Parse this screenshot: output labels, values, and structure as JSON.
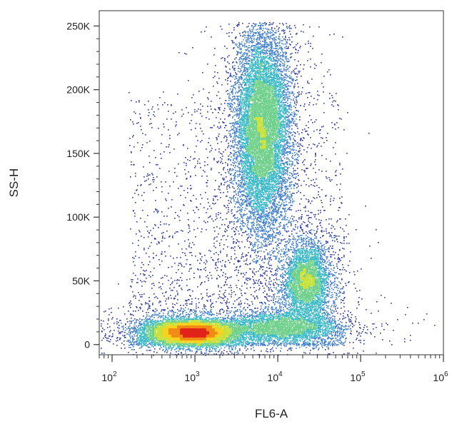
{
  "chart_data": {
    "type": "scatter",
    "subtype": "flow-cytometry-density-dot-plot",
    "title": "",
    "xlabel": "FL6-A",
    "ylabel": "SS-H",
    "x_scale": "log",
    "xlim": [
      70,
      1000000
    ],
    "ylim": [
      -8000,
      262000
    ],
    "x_ticks": [
      {
        "value": 100,
        "base": "10",
        "exp": "2"
      },
      {
        "value": 1000,
        "base": "10",
        "exp": "3"
      },
      {
        "value": 10000,
        "base": "10",
        "exp": "4"
      },
      {
        "value": 100000,
        "base": "10",
        "exp": "5"
      },
      {
        "value": 1000000,
        "base": "10",
        "exp": "6"
      }
    ],
    "y_ticks": [
      {
        "value": 0,
        "label": "0"
      },
      {
        "value": 50000,
        "label": "50K"
      },
      {
        "value": 100000,
        "label": "100K"
      },
      {
        "value": 150000,
        "label": "150K"
      },
      {
        "value": 200000,
        "label": "200K"
      },
      {
        "value": 250000,
        "label": "250K"
      }
    ],
    "grid": false,
    "legend": "none",
    "density_colors": [
      "#2b3aa8",
      "#3f7fd0",
      "#38b9c8",
      "#6fd08a",
      "#c8e03a",
      "#f7d21c",
      "#f08a14",
      "#e2231a"
    ],
    "populations": [
      {
        "x_center": 900,
        "y_center": 10000,
        "x_spread_decades": 0.28,
        "y_spread": 5000,
        "relative_count": 1.0,
        "peak_density": "red"
      },
      {
        "x_center": 6500,
        "y_center": 170000,
        "x_spread_decades": 0.17,
        "y_spread": 40000,
        "relative_count": 1.3,
        "peak_density": "green-yellow"
      },
      {
        "x_center": 22000,
        "y_center": 50000,
        "x_spread_decades": 0.14,
        "y_spread": 15000,
        "relative_count": 0.45,
        "peak_density": "green-yellow"
      },
      {
        "x_center": 12000,
        "y_center": 14000,
        "x_spread_decades": 0.35,
        "y_spread": 6000,
        "relative_count": 0.35,
        "peak_density": "cyan"
      }
    ]
  }
}
